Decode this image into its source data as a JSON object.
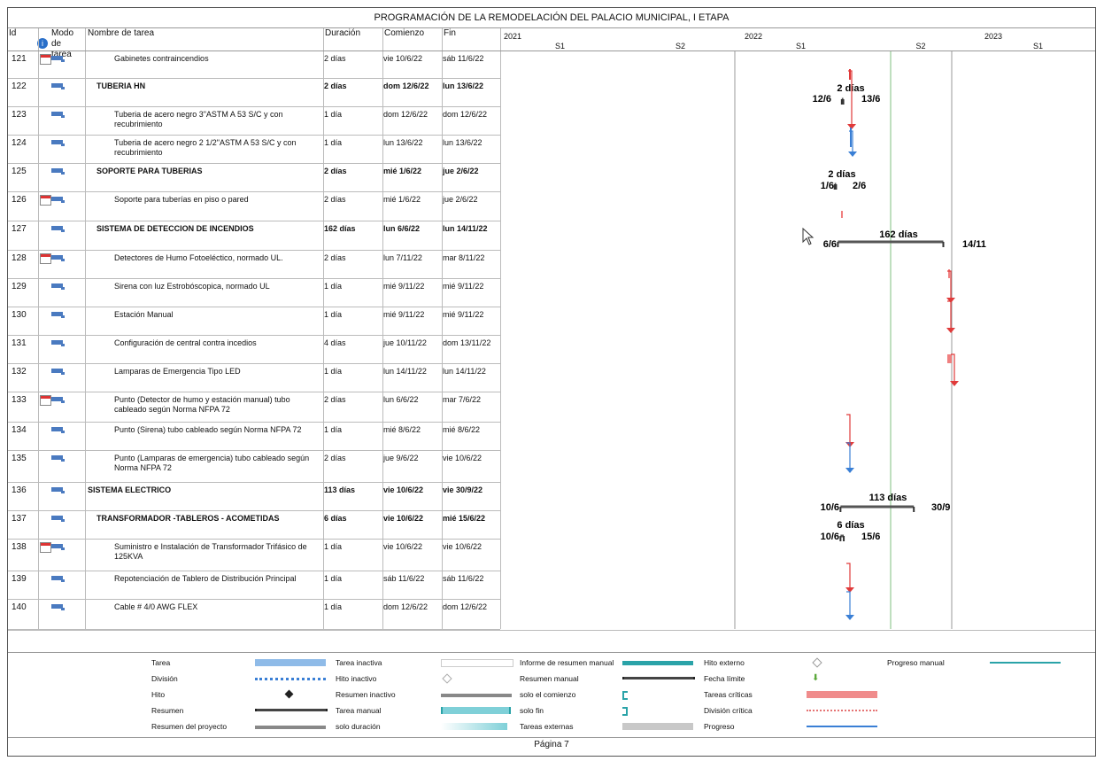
{
  "title": "PROGRAMACIÓN DE LA REMODELACIÓN DEL PALACIO MUNICIPAL, I ETAPA",
  "headers": {
    "id": "Id",
    "mode": "Modo de tarea",
    "name": "Nombre de tarea",
    "duration": "Duración",
    "start": "Comienzo",
    "finish": "Fin"
  },
  "timeline": {
    "years": [
      {
        "label": "2021"
      },
      {
        "label": "2022"
      },
      {
        "label": "2023"
      }
    ],
    "halves": [
      "S1",
      "S2",
      "S1",
      "S2",
      "S1"
    ]
  },
  "rows": [
    {
      "id": "121",
      "name": "Gabinetes contraincendios",
      "dur": "2 días",
      "start": "vie 10/6/22",
      "fin": "sáb 11/6/22",
      "bold": false,
      "cal": true,
      "level": 2
    },
    {
      "id": "122",
      "name": "TUBERIA HN",
      "dur": "2 días",
      "start": "dom 12/6/22",
      "fin": "lun 13/6/22",
      "bold": true,
      "cal": false,
      "level": 1
    },
    {
      "id": "123",
      "name": "Tuberia de acero negro 3\"ASTM A 53 S/C y con recubrimiento",
      "dur": "1 día",
      "start": "dom 12/6/22",
      "fin": "dom 12/6/22",
      "bold": false,
      "cal": false,
      "level": 2
    },
    {
      "id": "124",
      "name": "Tuberia de acero negro 2 1/2\"ASTM A 53 S/C y con recubrimiento",
      "dur": "1 día",
      "start": "lun 13/6/22",
      "fin": "lun 13/6/22",
      "bold": false,
      "cal": false,
      "level": 2
    },
    {
      "id": "125",
      "name": "SOPORTE PARA TUBERIAS",
      "dur": "2 días",
      "start": "mié 1/6/22",
      "fin": "jue 2/6/22",
      "bold": true,
      "cal": false,
      "level": 1
    },
    {
      "id": "126",
      "name": "Soporte para tuberías en piso o pared",
      "dur": "2 días",
      "start": "mié 1/6/22",
      "fin": "jue 2/6/22",
      "bold": false,
      "cal": true,
      "level": 2
    },
    {
      "id": "127",
      "name": "SISTEMA DE DETECCION DE INCENDIOS",
      "dur": "162 días",
      "start": "lun 6/6/22",
      "fin": "lun 14/11/22",
      "bold": true,
      "cal": false,
      "level": 1
    },
    {
      "id": "128",
      "name": "Detectores de Humo Fotoeléctico, normado UL.",
      "dur": "2 días",
      "start": "lun 7/11/22",
      "fin": "mar 8/11/22",
      "bold": false,
      "cal": true,
      "level": 2
    },
    {
      "id": "129",
      "name": "Sirena con luz Estrobóscopica, normado UL",
      "dur": "1 día",
      "start": "mié 9/11/22",
      "fin": "mié 9/11/22",
      "bold": false,
      "cal": false,
      "level": 2
    },
    {
      "id": "130",
      "name": "Estación Manual",
      "dur": "1 día",
      "start": "mié 9/11/22",
      "fin": "mié 9/11/22",
      "bold": false,
      "cal": false,
      "level": 2
    },
    {
      "id": "131",
      "name": "Configuración de central contra incedios",
      "dur": "4 días",
      "start": "jue 10/11/22",
      "fin": "dom 13/11/22",
      "bold": false,
      "cal": false,
      "level": 2
    },
    {
      "id": "132",
      "name": "Lamparas de Emergencia Tipo LED",
      "dur": "1 día",
      "start": "lun 14/11/22",
      "fin": "lun 14/11/22",
      "bold": false,
      "cal": false,
      "level": 2
    },
    {
      "id": "133",
      "name": "Punto (Detector de humo y estación manual) tubo cableado según Norma NFPA 72",
      "dur": "2 días",
      "start": "lun 6/6/22",
      "fin": "mar 7/6/22",
      "bold": false,
      "cal": true,
      "level": 2
    },
    {
      "id": "134",
      "name": "Punto (Sirena) tubo cableado según Norma NFPA 72",
      "dur": "1 día",
      "start": "mié 8/6/22",
      "fin": "mié 8/6/22",
      "bold": false,
      "cal": false,
      "level": 2
    },
    {
      "id": "135",
      "name": "Punto (Lamparas de emergencia) tubo cableado según Norma NFPA 72",
      "dur": "2 días",
      "start": "jue 9/6/22",
      "fin": "vie 10/6/22",
      "bold": false,
      "cal": false,
      "level": 2
    },
    {
      "id": "136",
      "name": "SISTEMA ELECTRICO",
      "dur": "113 días",
      "start": "vie 10/6/22",
      "fin": "vie 30/9/22",
      "bold": true,
      "cal": false,
      "level": 0
    },
    {
      "id": "137",
      "name": "TRANSFORMADOR -TABLEROS - ACOMETIDAS",
      "dur": "6 días",
      "start": "vie 10/6/22",
      "fin": "mié 15/6/22",
      "bold": true,
      "cal": false,
      "level": 1
    },
    {
      "id": "138",
      "name": "Suministro e Instalación de Transformador Trifásico de 125KVA",
      "dur": "1 día",
      "start": "vie 10/6/22",
      "fin": "vie 10/6/22",
      "bold": false,
      "cal": true,
      "level": 2
    },
    {
      "id": "139",
      "name": "Repotenciación de Tablero de Distribución Principal",
      "dur": "1 día",
      "start": "sáb 11/6/22",
      "fin": "sáb 11/6/22",
      "bold": false,
      "cal": false,
      "level": 2
    },
    {
      "id": "140",
      "name": "Cable # 4/0 AWG FLEX",
      "dur": "1 día",
      "start": "dom 12/6/22",
      "fin": "dom 12/6/22",
      "bold": false,
      "cal": false,
      "level": 2
    }
  ],
  "gantt_labels": {
    "l122": {
      "dur": "2 días",
      "start": "12/6",
      "end": "13/6"
    },
    "l125": {
      "dur": "2 días",
      "start": "1/6",
      "end": "2/6"
    },
    "l127": {
      "dur": "162 días",
      "start": "6/6",
      "end": "14/11"
    },
    "l136": {
      "dur": "113 días",
      "start": "10/6",
      "end": "30/9"
    },
    "l137": {
      "dur": "6 días",
      "start": "10/6",
      "end": "15/6"
    }
  },
  "legend": [
    [
      "Tarea",
      "División",
      "Hito",
      "Resumen",
      "Resumen del proyecto"
    ],
    [
      "Tarea inactiva",
      "Hito inactivo",
      "Resumen inactivo",
      "Tarea manual",
      "solo duración"
    ],
    [
      "Informe de resumen manual",
      "Resumen manual",
      "solo el comienzo",
      "solo fin",
      "Tareas externas"
    ],
    [
      "Hito externo",
      "Fecha límite",
      "Tareas críticas",
      "División crítica",
      "Progreso"
    ],
    [
      "Progreso manual"
    ]
  ],
  "footer": "Página 7",
  "colors": {
    "blue": "#3a7fd5",
    "red": "#e03a3a",
    "green": "#7fbf7f",
    "teal": "#2aa3a8"
  }
}
